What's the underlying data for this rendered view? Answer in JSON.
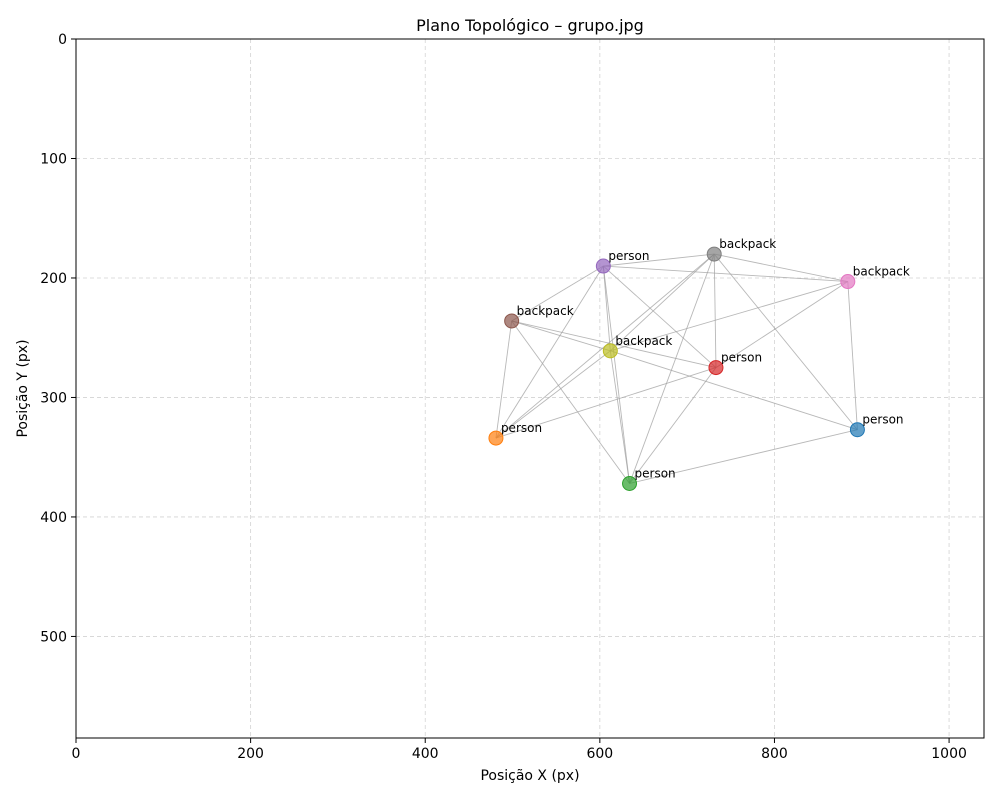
{
  "chart_data": {
    "type": "scatter",
    "title": "Plano Topológico – grupo.jpg",
    "xlabel": "Posição X (px)",
    "ylabel": "Posição Y (px)",
    "xlim": [
      0,
      1040
    ],
    "ylim": [
      585,
      0
    ],
    "y_inverted": true,
    "xticks": [
      0,
      200,
      400,
      600,
      800,
      1000
    ],
    "yticks": [
      0,
      100,
      200,
      300,
      400,
      500
    ],
    "grid": true,
    "grid_style": "dashed",
    "points": [
      {
        "label": "person",
        "x": 895,
        "y": 327,
        "color": "#1f77b4"
      },
      {
        "label": "person",
        "x": 481,
        "y": 334,
        "color": "#ff7f0e"
      },
      {
        "label": "person",
        "x": 634,
        "y": 372,
        "color": "#2ca02c"
      },
      {
        "label": "person",
        "x": 733,
        "y": 275,
        "color": "#d62728"
      },
      {
        "label": "person",
        "x": 604,
        "y": 190,
        "color": "#9467bd"
      },
      {
        "label": "backpack",
        "x": 499,
        "y": 236,
        "color": "#8c564b"
      },
      {
        "label": "backpack",
        "x": 884,
        "y": 203,
        "color": "#e377c2"
      },
      {
        "label": "backpack",
        "x": 731,
        "y": 180,
        "color": "#7f7f7f"
      },
      {
        "label": "backpack",
        "x": 612,
        "y": 261,
        "color": "#bcbd22"
      }
    ],
    "edges": [
      [
        7,
        4
      ],
      [
        7,
        6
      ],
      [
        7,
        3
      ],
      [
        7,
        8
      ],
      [
        7,
        1
      ],
      [
        7,
        2
      ],
      [
        7,
        0
      ],
      [
        4,
        6
      ],
      [
        4,
        5
      ],
      [
        4,
        1
      ],
      [
        4,
        8
      ],
      [
        4,
        3
      ],
      [
        4,
        2
      ],
      [
        5,
        8
      ],
      [
        5,
        3
      ],
      [
        5,
        1
      ],
      [
        5,
        2
      ],
      [
        8,
        6
      ],
      [
        8,
        0
      ],
      [
        8,
        1
      ],
      [
        8,
        2
      ],
      [
        6,
        0
      ],
      [
        6,
        3
      ],
      [
        3,
        1
      ],
      [
        3,
        2
      ],
      [
        2,
        0
      ]
    ]
  }
}
